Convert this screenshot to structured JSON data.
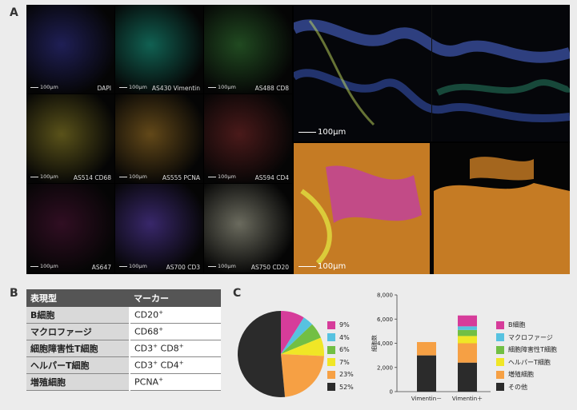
{
  "panel_labels": {
    "a": "A",
    "b": "B",
    "c": "C"
  },
  "panelA": {
    "tiles": [
      {
        "label": "DAPI",
        "scale": "100µm",
        "color": "#3a3aa0"
      },
      {
        "label": "AS430 Vimentin",
        "scale": "100µm",
        "color": "#1fb59a"
      },
      {
        "label": "AS488 CD8",
        "scale": "100µm",
        "color": "#3d8a3d"
      },
      {
        "label": "AS514 CD68",
        "scale": "100µm",
        "color": "#a89a30"
      },
      {
        "label": "AS555 PCNA",
        "scale": "100µm",
        "color": "#b8872e"
      },
      {
        "label": "AS594 CD4",
        "scale": "100µm",
        "color": "#8a3030"
      },
      {
        "label": "AS647",
        "scale": "100µm",
        "color": "#5a1a40"
      },
      {
        "label": "AS700 CD3",
        "scale": "100µm",
        "color": "#6a4ac8"
      },
      {
        "label": "AS750 CD20",
        "scale": "100µm",
        "color": "#c8c8b0"
      }
    ],
    "composite_scale_top": "100µm",
    "composite_scale_bottom": "100µm"
  },
  "panelB": {
    "headers": [
      "表現型",
      "マーカー"
    ],
    "rows": [
      {
        "name": "B細胞",
        "marker": "CD20",
        "sup": "+",
        "marker2": "",
        "sup2": ""
      },
      {
        "name": "マクロファージ",
        "marker": "CD68",
        "sup": "+",
        "marker2": "",
        "sup2": ""
      },
      {
        "name": "細胞障害性T細胞",
        "marker": "CD3",
        "sup": "+",
        "marker2": " CD8",
        "sup2": "+"
      },
      {
        "name": "ヘルパーT細胞",
        "marker": "CD3",
        "sup": "+",
        "marker2": " CD4",
        "sup2": "+"
      },
      {
        "name": "増殖細胞",
        "marker": "PCNA",
        "sup": "+",
        "marker2": "",
        "sup2": ""
      }
    ]
  },
  "chart_data": [
    {
      "type": "pie",
      "labels": [
        "9%",
        "4%",
        "6%",
        "7%",
        "23%",
        "52%"
      ],
      "values": [
        9,
        4,
        6,
        7,
        23,
        52
      ],
      "colors": [
        "#d63c9a",
        "#57c2e0",
        "#72bf44",
        "#f0e626",
        "#f6a044",
        "#2b2b2b"
      ]
    },
    {
      "type": "bar",
      "stacked": true,
      "categories": [
        "Vimentin－",
        "Vimentin＋"
      ],
      "ylabel": "細胞数",
      "ylim": [
        0,
        8000
      ],
      "yticks": [
        "0",
        "2,000",
        "4,000",
        "6,000",
        "8,000"
      ],
      "series": [
        {
          "name": "その他",
          "color": "#2b2b2b",
          "values": [
            3000,
            2400
          ]
        },
        {
          "name": "増殖細胞",
          "color": "#f6a044",
          "values": [
            1100,
            1600
          ]
        },
        {
          "name": "ヘルパーT細胞",
          "color": "#f0e626",
          "values": [
            0,
            600
          ]
        },
        {
          "name": "細胞障害性T細胞",
          "color": "#72bf44",
          "values": [
            0,
            500
          ]
        },
        {
          "name": "マクロファージ",
          "color": "#57c2e0",
          "values": [
            0,
            300
          ]
        },
        {
          "name": "B細胞",
          "color": "#d63c9a",
          "values": [
            0,
            900
          ]
        }
      ]
    }
  ]
}
